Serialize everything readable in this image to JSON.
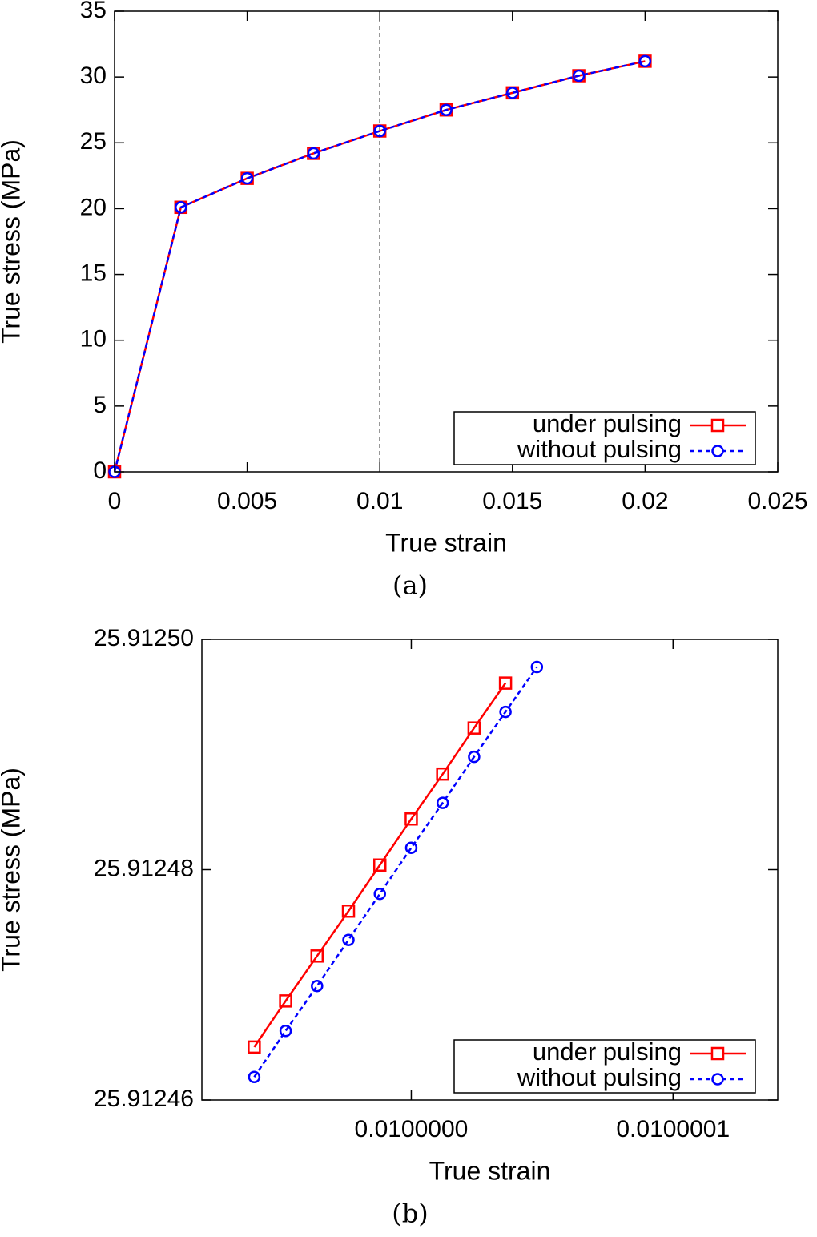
{
  "chart_data": [
    {
      "type": "line",
      "xlabel": "True strain",
      "ylabel": "True stress (MPa)",
      "caption": "(a)",
      "x": [
        0,
        0.0025,
        0.005,
        0.0075,
        0.01,
        0.0125,
        0.015,
        0.0175,
        0.02
      ],
      "series": [
        {
          "name": "under pulsing",
          "color": "#ff0000",
          "marker": "square",
          "linestyle": "solid",
          "values": [
            0,
            20.1,
            22.3,
            24.2,
            25.9,
            27.5,
            28.8,
            30.1,
            31.2
          ]
        },
        {
          "name": "without pulsing",
          "color": "#0000ff",
          "marker": "circle",
          "linestyle": "dashed",
          "values": [
            0,
            20.1,
            22.3,
            24.2,
            25.9,
            27.5,
            28.8,
            30.1,
            31.2
          ]
        }
      ],
      "xlim": [
        0,
        0.025
      ],
      "xticks": [
        0,
        0.005,
        0.01,
        0.015,
        0.02,
        0.025
      ],
      "ylim": [
        0,
        35
      ],
      "yticks": [
        0,
        5,
        10,
        15,
        20,
        25,
        30,
        35
      ],
      "vline": 0.01,
      "legend": "lower right"
    },
    {
      "type": "line",
      "xlabel": "True strain",
      "ylabel": "True stress (MPa)",
      "caption": "(b)",
      "series": [
        {
          "name": "under pulsing",
          "color": "#ff0000",
          "marker": "square",
          "linestyle": "solid",
          "x": [
            0.00999994,
            0.009999952,
            0.009999964,
            0.009999976,
            0.009999988,
            0.01,
            0.010000012,
            0.010000024,
            0.010000036
          ],
          "values": [
            25.9124646,
            25.9124686,
            25.9124725,
            25.9124764,
            25.9124804,
            25.9124844,
            25.9124883,
            25.9124923,
            25.9124962
          ]
        },
        {
          "name": "without pulsing",
          "color": "#0000ff",
          "marker": "circle",
          "linestyle": "dashed",
          "x": [
            0.00999994,
            0.009999952,
            0.009999964,
            0.009999976,
            0.009999988,
            0.01,
            0.010000012,
            0.010000024,
            0.010000036,
            0.010000048
          ],
          "values": [
            25.912462,
            25.912466,
            25.9124699,
            25.9124739,
            25.9124779,
            25.9124819,
            25.9124858,
            25.9124898,
            25.9124937,
            25.9124976
          ]
        }
      ],
      "xlim": [
        0.00999992,
        0.01000014
      ],
      "xticks": [
        {
          "value": 0.01,
          "label": "0.0100000"
        },
        {
          "value": 0.0100001,
          "label": "0.0100001"
        }
      ],
      "ylim": [
        25.91246,
        25.9125
      ],
      "yticks": [
        25.91246,
        25.91248,
        {
          "value": 25.9125,
          "label": "25.91250"
        }
      ],
      "legend": "lower right"
    }
  ]
}
